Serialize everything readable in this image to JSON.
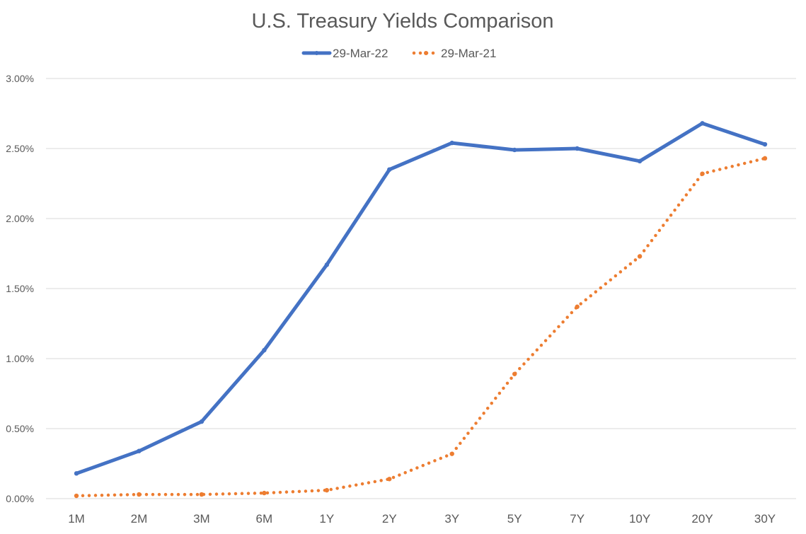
{
  "chart_data": {
    "type": "line",
    "title": "U.S. Treasury Yields Comparison",
    "xlabel": "",
    "ylabel": "",
    "categories": [
      "1M",
      "2M",
      "3M",
      "6M",
      "1Y",
      "2Y",
      "3Y",
      "5Y",
      "7Y",
      "10Y",
      "20Y",
      "30Y"
    ],
    "ylim": [
      0,
      3.0
    ],
    "yticks": [
      0,
      0.5,
      1.0,
      1.5,
      2.0,
      2.5,
      3.0
    ],
    "ytick_labels": [
      "0.00%",
      "0.50%",
      "1.00%",
      "1.50%",
      "2.00%",
      "2.50%",
      "3.00%"
    ],
    "grid": true,
    "legend_position": "top-center",
    "series": [
      {
        "name": "29-Mar-22",
        "color": "#4472c4",
        "line_style": "solid",
        "values": [
          0.18,
          0.34,
          0.55,
          1.06,
          1.67,
          2.35,
          2.54,
          2.49,
          2.5,
          2.41,
          2.68,
          2.53
        ]
      },
      {
        "name": "29-Mar-21",
        "color": "#ed7d31",
        "line_style": "dotted",
        "values": [
          0.02,
          0.03,
          0.03,
          0.04,
          0.06,
          0.14,
          0.32,
          0.89,
          1.37,
          1.73,
          2.32,
          2.43
        ]
      }
    ]
  }
}
